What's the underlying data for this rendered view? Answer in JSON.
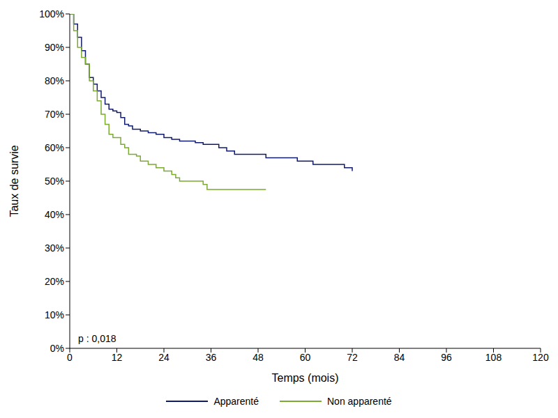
{
  "chart_data": {
    "type": "line",
    "x_label": "Temps (mois)",
    "y_label": "Taux de survie",
    "annotation": "p : 0,018",
    "xlim": [
      0,
      120
    ],
    "xticks": [
      0,
      12,
      24,
      36,
      48,
      60,
      72,
      84,
      96,
      108,
      120
    ],
    "ylim": [
      0,
      100
    ],
    "yticks": [
      {
        "value": 0,
        "label": "0%"
      },
      {
        "value": 10,
        "label": "10%"
      },
      {
        "value": 20,
        "label": "20%"
      },
      {
        "value": 30,
        "label": "30%"
      },
      {
        "value": 40,
        "label": "40%"
      },
      {
        "value": 50,
        "label": "50%"
      },
      {
        "value": 60,
        "label": "60%"
      },
      {
        "value": 70,
        "label": "70%"
      },
      {
        "value": 80,
        "label": "80%"
      },
      {
        "value": 90,
        "label": "90%"
      },
      {
        "value": 100,
        "label": "100%"
      }
    ],
    "grid": false,
    "legend": "bottom",
    "line_style": "step",
    "series": [
      {
        "name": "Apparenté",
        "color": "#101a6b",
        "x": [
          0,
          1,
          2,
          3,
          4,
          5,
          6,
          7,
          8,
          9,
          10,
          11,
          12,
          13,
          14,
          15,
          16,
          18,
          20,
          22,
          24,
          26,
          28,
          32,
          34,
          38,
          40,
          42,
          50,
          58,
          62,
          70,
          71,
          72
        ],
        "values": [
          100,
          97,
          93,
          89,
          85,
          81,
          79,
          77,
          75,
          73,
          71.5,
          71,
          70.5,
          69,
          67,
          66.5,
          65.5,
          65,
          64.5,
          64,
          63,
          62.5,
          62,
          61.5,
          61,
          60,
          59,
          58,
          57,
          56,
          55,
          54,
          54,
          53
        ]
      },
      {
        "name": "Non apparenté",
        "color": "#7aab2e",
        "x": [
          0,
          1,
          2,
          3,
          4,
          5,
          6,
          7,
          8,
          9,
          10,
          11,
          12,
          13,
          14,
          15,
          17,
          18,
          20,
          22,
          24,
          26,
          27,
          28,
          34,
          35,
          50
        ],
        "values": [
          100,
          95,
          90,
          87,
          85,
          80,
          77,
          74,
          70,
          67,
          64,
          63,
          63,
          61,
          60,
          58,
          57.5,
          56,
          55,
          54,
          53,
          52,
          51,
          50,
          49,
          47.5,
          47.5
        ]
      }
    ]
  }
}
